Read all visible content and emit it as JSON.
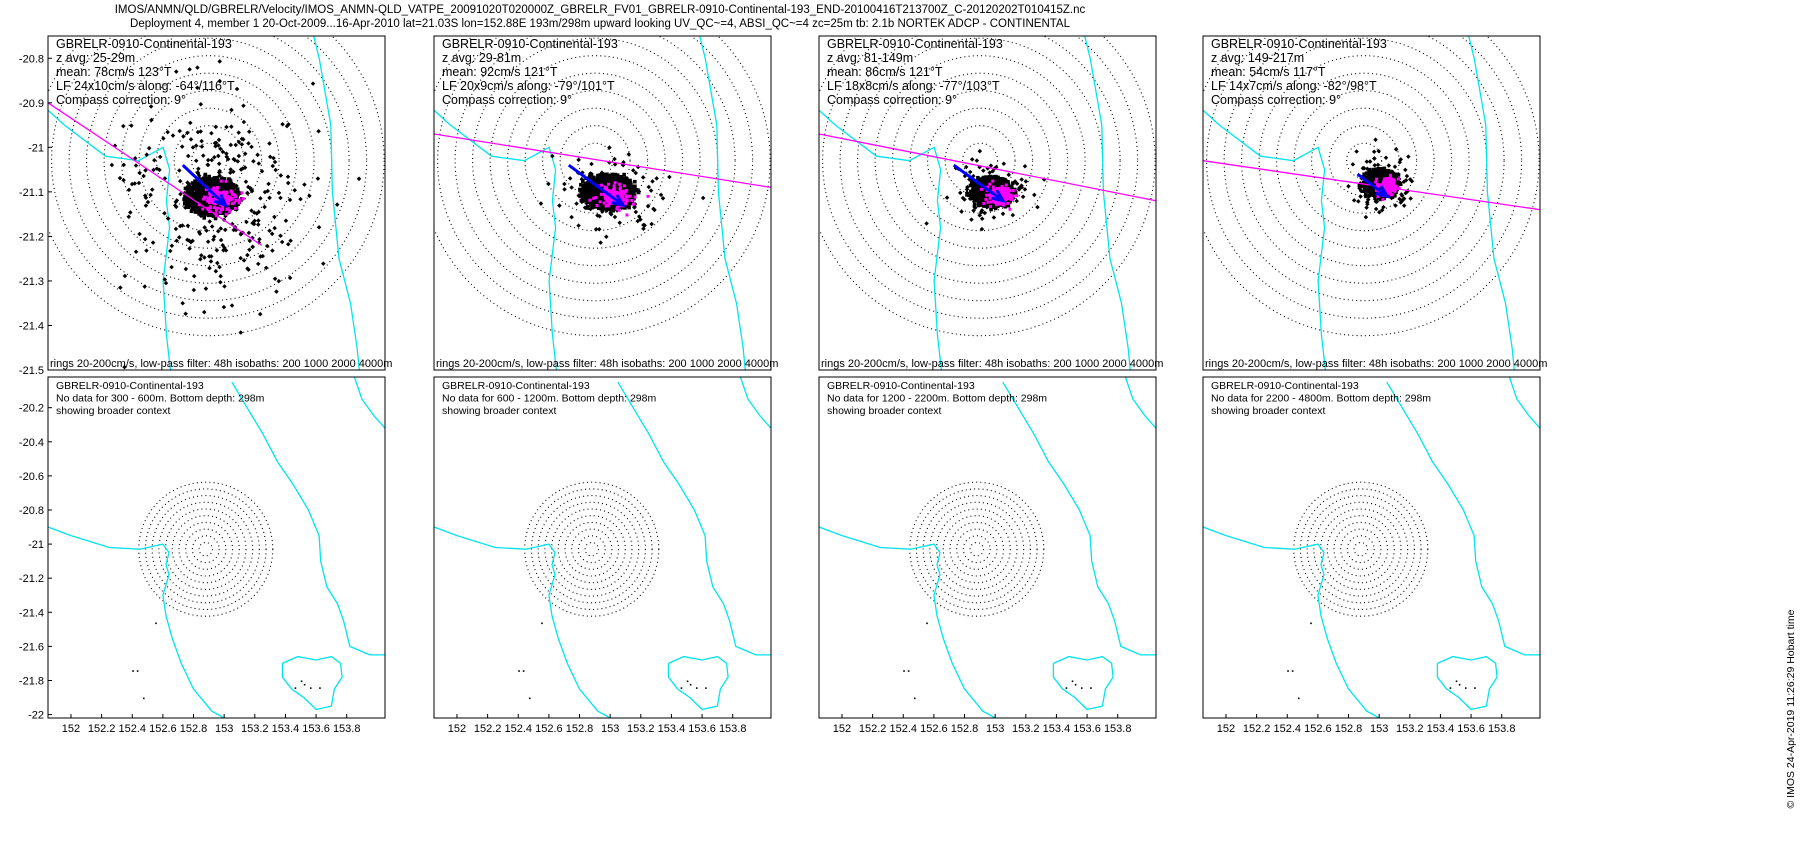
{
  "title": {
    "line1": "IMOS/ANMN/QLD/GBRELR/Velocity/IMOS_ANMN-QLD_VATPE_20091020T020000Z_GBRELR_FV01_GBRELR-0910-Continental-193_END-20100416T213700Z_C-20120202T010415Z.nc",
    "line2": "Deployment 4, member 1 20-Oct-2009...16-Apr-2010 lat=21.03S lon=152.88E 193m/298m upward looking UV_QC~=4, ABSI_QC~=4 zc=25m tb: 2.1b NORTEK ADCP - CONTINENTAL"
  },
  "footer_stamp": "© IMOS 24-Apr-2019 11:26:29 Hobart time",
  "colors": {
    "scatter": "#000000",
    "lowpass": "#ff00ff",
    "mean_arrow": "#0000ff",
    "coast": "#00e5ee",
    "rings": "#000000"
  },
  "chart_data": [
    {
      "type": "scatter",
      "panel": "top-1",
      "lines": [
        "GBRELR-0910-Continental-193",
        "z avg: 25-29m",
        "mean: 78cm/s 123°T",
        "LF 24x10cm/s along: -64°/116°T",
        "Compass correction: 9°"
      ],
      "footer": "rings 20-200cm/s, low-pass filter: 48h isobaths: 200 1000 2000 4000m",
      "xlim": [
        151.9,
        153.95
      ],
      "ylim": [
        -21.5,
        -20.75
      ],
      "yticks": [
        -20.8,
        -20.9,
        -21,
        -21.1,
        -21.2,
        -21.3,
        -21.4,
        -21.5
      ],
      "center": [
        152.88,
        -21.03
      ],
      "cloud": {
        "center": [
          152.9,
          -21.11
        ],
        "rx": 0.3,
        "ry": 0.07,
        "outlier_rx": 0.6,
        "outlier_ry": 0.27
      },
      "mean_arrow": [
        [
          152.72,
          -21.04
        ],
        [
          152.98,
          -21.13
        ]
      ],
      "axis_line": [
        [
          151.9,
          -20.9
        ],
        [
          153.2,
          -21.22
        ]
      ]
    },
    {
      "type": "scatter",
      "panel": "top-2",
      "lines": [
        "GBRELR-0910-Continental-193",
        "z avg: 29-81m",
        "mean: 92cm/s 121°T",
        "LF 20x9cm/s along: -79°/101°T",
        "Compass correction: 9°"
      ],
      "footer": "rings 20-200cm/s, low-pass filter: 48h isobaths: 200 1000 2000 4000m",
      "xlim": [
        151.9,
        153.95
      ],
      "ylim": [
        -21.5,
        -20.75
      ],
      "center": [
        152.88,
        -21.03
      ],
      "cloud": {
        "center": [
          152.96,
          -21.1
        ],
        "rx": 0.3,
        "ry": 0.065,
        "outlier_rx": 0.36,
        "outlier_ry": 0.09
      },
      "mean_arrow": [
        [
          152.72,
          -21.04
        ],
        [
          153.05,
          -21.13
        ]
      ],
      "axis_line": [
        [
          151.9,
          -20.97
        ],
        [
          153.95,
          -21.09
        ]
      ]
    },
    {
      "type": "scatter",
      "panel": "top-3",
      "lines": [
        "GBRELR-0910-Continental-193",
        "z avg: 81-149m",
        "mean: 86cm/s 121°T",
        "LF 18x8cm/s along: -77°/103°T",
        "Compass correction: 9°"
      ],
      "footer": "rings 20-200cm/s, low-pass filter: 48h isobaths: 200 1000 2000 4000m",
      "xlim": [
        151.9,
        153.95
      ],
      "ylim": [
        -21.5,
        -20.75
      ],
      "center": [
        152.88,
        -21.03
      ],
      "cloud": {
        "center": [
          152.95,
          -21.1
        ],
        "rx": 0.22,
        "ry": 0.055,
        "outlier_rx": 0.26,
        "outlier_ry": 0.075
      },
      "mean_arrow": [
        [
          152.72,
          -21.04
        ],
        [
          153.02,
          -21.12
        ]
      ],
      "axis_line": [
        [
          151.9,
          -20.97
        ],
        [
          153.95,
          -21.12
        ]
      ]
    },
    {
      "type": "scatter",
      "panel": "top-4",
      "lines": [
        "GBRELR-0910-Continental-193",
        "z avg: 149-217m",
        "mean: 54cm/s 117°T",
        "LF 14x7cm/s along: -82°/98°T",
        "Compass correction: 9°"
      ],
      "footer": "rings 20-200cm/s, low-pass filter: 48h isobaths: 200 1000 2000 4000m",
      "xlim": [
        151.9,
        153.95
      ],
      "ylim": [
        -21.5,
        -20.75
      ],
      "center": [
        152.88,
        -21.03
      ],
      "cloud": {
        "center": [
          152.98,
          -21.08
        ],
        "rx": 0.17,
        "ry": 0.05,
        "outlier_rx": 0.2,
        "outlier_ry": 0.065
      },
      "mean_arrow": [
        [
          152.84,
          -21.06
        ],
        [
          153.02,
          -21.11
        ]
      ],
      "axis_line": [
        [
          151.9,
          -21.03
        ],
        [
          153.95,
          -21.14
        ]
      ]
    },
    {
      "type": "scatter",
      "panel": "bottom-1",
      "lines": [
        "GBRELR-0910-Continental-193",
        "No data for 300 - 600m. Bottom depth: 298m",
        "showing broader context"
      ],
      "xlim": [
        151.85,
        154.05
      ],
      "ylim": [
        -22.02,
        -20.02
      ],
      "xticks": [
        152,
        152.2,
        152.4,
        152.6,
        152.8,
        153,
        153.2,
        153.4,
        153.6,
        153.8
      ],
      "yticks": [
        -20.2,
        -20.4,
        -20.6,
        -20.8,
        -21,
        -21.2,
        -21.4,
        -21.6,
        -21.8,
        -22
      ],
      "center": [
        152.88,
        -21.03
      ]
    },
    {
      "type": "scatter",
      "panel": "bottom-2",
      "lines": [
        "GBRELR-0910-Continental-193",
        "No data for 600 - 1200m. Bottom depth: 298m",
        "showing broader context"
      ],
      "xlim": [
        151.85,
        154.05
      ],
      "ylim": [
        -22.02,
        -20.02
      ],
      "xticks": [
        152,
        152.2,
        152.4,
        152.6,
        152.8,
        153,
        153.2,
        153.4,
        153.6,
        153.8
      ],
      "center": [
        152.88,
        -21.03
      ]
    },
    {
      "type": "scatter",
      "panel": "bottom-3",
      "lines": [
        "GBRELR-0910-Continental-193",
        "No data for 1200 - 2200m. Bottom depth: 298m",
        "showing broader context"
      ],
      "xlim": [
        151.85,
        154.05
      ],
      "ylim": [
        -22.02,
        -20.02
      ],
      "xticks": [
        152,
        152.2,
        152.4,
        152.6,
        152.8,
        153,
        153.2,
        153.4,
        153.6,
        153.8
      ],
      "center": [
        152.88,
        -21.03
      ]
    },
    {
      "type": "scatter",
      "panel": "bottom-4",
      "lines": [
        "GBRELR-0910-Continental-193",
        "No data for 2200 - 4800m. Bottom depth: 298m",
        "showing broader context"
      ],
      "xlim": [
        151.85,
        154.05
      ],
      "ylim": [
        -22.02,
        -20.02
      ],
      "xticks": [
        152,
        152.2,
        152.4,
        152.6,
        152.8,
        153,
        153.2,
        153.4,
        153.6,
        153.8
      ],
      "center": [
        152.88,
        -21.03
      ]
    }
  ]
}
